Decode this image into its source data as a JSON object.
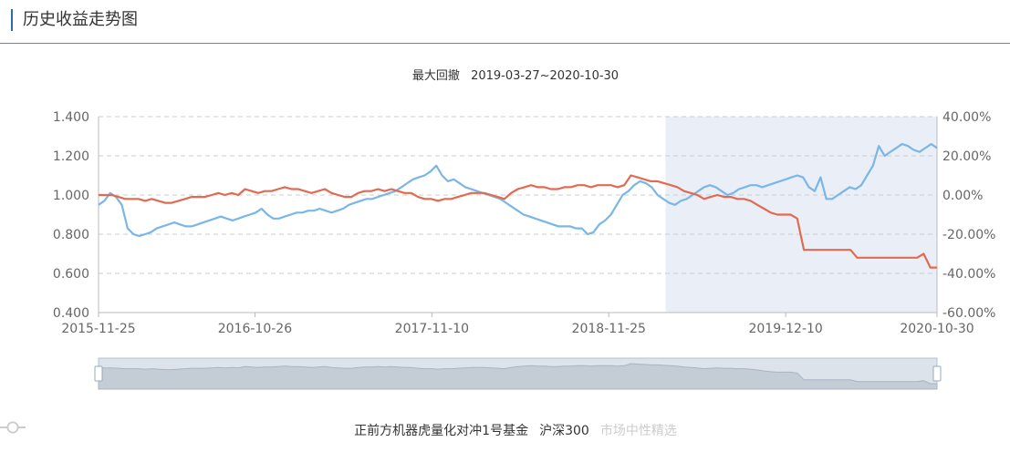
{
  "header": {
    "title": "历史收益走势图"
  },
  "subtitle": {
    "label": "最大回撤",
    "range": "2019-03-27~2020-10-30"
  },
  "colors": {
    "fund": "#e06a52",
    "index": "#7ab6e6",
    "neutral": "#cccccc",
    "shade": "#e9eef7",
    "grid": "#cccccc",
    "axis_text": "#666666"
  },
  "legend": [
    {
      "name": "正前方机器虎量化对冲1号基金",
      "color": "#e06a52",
      "active": true
    },
    {
      "name": "沪深300",
      "color": "#7ab6e6",
      "active": true
    },
    {
      "name": "市场中性精选",
      "color": "#cccccc",
      "active": false
    }
  ],
  "chart_data": {
    "type": "line",
    "x_labels": [
      "2015-11-25",
      "2016-10-26",
      "2017-11-10",
      "2018-11-25",
      "2019-12-10",
      "2020-10-30"
    ],
    "y_left": {
      "ticks": [
        "1.400",
        "1.200",
        "1.000",
        "0.800",
        "0.600",
        "0.400"
      ],
      "min": 0.4,
      "max": 1.4
    },
    "y_right": {
      "ticks": [
        "40.00%",
        "20.00%",
        "0.00%",
        "-20.00%",
        "-40.00%",
        "-60.00%"
      ],
      "min": -60,
      "max": 40
    },
    "grid": true,
    "shaded_region": {
      "label": "最大回撤",
      "from": "2019-03-27",
      "to": "2020-10-30"
    },
    "series": [
      {
        "name": "正前方机器虎量化对冲1号基金",
        "axis": "left",
        "values": [
          1.0,
          1.0,
          1.0,
          0.99,
          0.98,
          0.98,
          0.98,
          0.97,
          0.98,
          0.97,
          0.96,
          0.96,
          0.97,
          0.98,
          0.99,
          0.99,
          0.99,
          1.0,
          1.01,
          1.0,
          1.01,
          1.0,
          1.03,
          1.02,
          1.01,
          1.02,
          1.02,
          1.03,
          1.04,
          1.03,
          1.03,
          1.02,
          1.01,
          1.02,
          1.03,
          1.01,
          1.0,
          0.99,
          0.99,
          1.01,
          1.02,
          1.02,
          1.03,
          1.02,
          1.03,
          1.02,
          1.01,
          1.01,
          0.99,
          0.98,
          0.98,
          0.97,
          0.98,
          0.98,
          0.99,
          1.0,
          1.01,
          1.01,
          1.01,
          1.0,
          0.99,
          0.98,
          1.01,
          1.03,
          1.04,
          1.05,
          1.04,
          1.04,
          1.03,
          1.03,
          1.04,
          1.04,
          1.05,
          1.05,
          1.04,
          1.05,
          1.05,
          1.05,
          1.04,
          1.05,
          1.1,
          1.09,
          1.08,
          1.07,
          1.07,
          1.06,
          1.05,
          1.04,
          1.02,
          1.01,
          1.0,
          0.98,
          0.99,
          1.0,
          0.99,
          0.99,
          0.98,
          0.98,
          0.97,
          0.95,
          0.93,
          0.91,
          0.9,
          0.9,
          0.9,
          0.88,
          0.72,
          0.72,
          0.72,
          0.72,
          0.72,
          0.72,
          0.72,
          0.72,
          0.68,
          0.68,
          0.68,
          0.68,
          0.68,
          0.68,
          0.68,
          0.68,
          0.68,
          0.68,
          0.7,
          0.63,
          0.63
        ]
      },
      {
        "name": "沪深300",
        "axis": "left",
        "values": [
          0.95,
          0.97,
          1.01,
          0.99,
          0.95,
          0.83,
          0.8,
          0.79,
          0.8,
          0.81,
          0.83,
          0.84,
          0.85,
          0.86,
          0.85,
          0.84,
          0.84,
          0.85,
          0.86,
          0.87,
          0.88,
          0.89,
          0.88,
          0.87,
          0.88,
          0.89,
          0.9,
          0.91,
          0.93,
          0.9,
          0.88,
          0.88,
          0.89,
          0.9,
          0.91,
          0.91,
          0.92,
          0.92,
          0.93,
          0.92,
          0.91,
          0.92,
          0.93,
          0.95,
          0.96,
          0.97,
          0.98,
          0.98,
          0.99,
          1.0,
          1.01,
          1.02,
          1.04,
          1.06,
          1.08,
          1.09,
          1.1,
          1.12,
          1.15,
          1.1,
          1.07,
          1.08,
          1.06,
          1.04,
          1.03,
          1.02,
          1.01,
          1.0,
          0.99,
          0.98,
          0.96,
          0.94,
          0.92,
          0.9,
          0.89,
          0.88,
          0.87,
          0.86,
          0.85,
          0.84,
          0.84,
          0.84,
          0.83,
          0.83,
          0.8,
          0.81,
          0.85,
          0.87,
          0.9,
          0.95,
          1.0,
          1.02,
          1.05,
          1.07,
          1.06,
          1.04,
          1.0,
          0.98,
          0.96,
          0.95,
          0.97,
          0.98,
          1.0,
          1.02,
          1.04,
          1.05,
          1.04,
          1.02,
          1.0,
          1.01,
          1.03,
          1.04,
          1.05,
          1.05,
          1.04,
          1.05,
          1.06,
          1.07,
          1.08,
          1.09,
          1.1,
          1.09,
          1.04,
          1.02,
          1.09,
          0.98,
          0.98,
          1.0,
          1.02,
          1.04,
          1.03,
          1.05,
          1.1,
          1.15,
          1.25,
          1.2,
          1.22,
          1.24,
          1.26,
          1.25,
          1.23,
          1.22,
          1.24,
          1.26,
          1.24
        ]
      }
    ]
  }
}
